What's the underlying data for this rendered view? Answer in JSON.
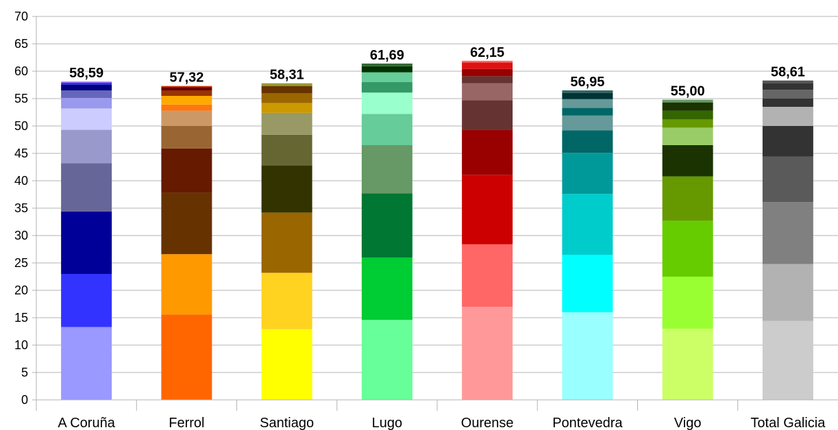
{
  "chart_data": {
    "type": "bar",
    "stacked": true,
    "title": "",
    "xlabel": "",
    "ylabel": "",
    "ylim": [
      0,
      70
    ],
    "yticks": [
      0,
      5,
      10,
      15,
      20,
      25,
      30,
      35,
      40,
      45,
      50,
      55,
      60,
      65,
      70
    ],
    "grid": true,
    "legend": "none",
    "categories": [
      "A Coruña",
      "Ferrol",
      "Santiago",
      "Lugo",
      "Ourense",
      "Pontevedra",
      "Vigo",
      "Total Galicia"
    ],
    "totals": [
      "58,59",
      "57,32",
      "58,31",
      "61,69",
      "62,15",
      "56,95",
      "55,00",
      "58,61"
    ],
    "stacks": [
      {
        "category": "A Coruña",
        "segments": [
          {
            "value": 13.3,
            "color": "#9999ff"
          },
          {
            "value": 9.7,
            "color": "#3333ff"
          },
          {
            "value": 11.4,
            "color": "#000099"
          },
          {
            "value": 8.8,
            "color": "#666699"
          },
          {
            "value": 6.1,
            "color": "#9999cc"
          },
          {
            "value": 3.9,
            "color": "#ccccff"
          },
          {
            "value": 1.9,
            "color": "#9999ee"
          },
          {
            "value": 1.4,
            "color": "#6666bb"
          },
          {
            "value": 1.0,
            "color": "#000080"
          },
          {
            "value": 0.4,
            "color": "#3333cc"
          },
          {
            "value": 0.2,
            "color": "#9966ff"
          }
        ]
      },
      {
        "category": "Ferrol",
        "segments": [
          {
            "value": 15.6,
            "color": "#ff6600"
          },
          {
            "value": 11.0,
            "color": "#ff9900"
          },
          {
            "value": 11.2,
            "color": "#663300"
          },
          {
            "value": 8.1,
            "color": "#661a00"
          },
          {
            "value": 4.1,
            "color": "#996633"
          },
          {
            "value": 2.8,
            "color": "#cc9966"
          },
          {
            "value": 1.1,
            "color": "#ff7711"
          },
          {
            "value": 1.6,
            "color": "#ffaa00"
          },
          {
            "value": 1.0,
            "color": "#993300"
          },
          {
            "value": 0.6,
            "color": "#660000"
          },
          {
            "value": 0.2,
            "color": "#cc3300"
          }
        ]
      },
      {
        "category": "Santiago",
        "segments": [
          {
            "value": 12.9,
            "color": "#ffff00"
          },
          {
            "value": 10.3,
            "color": "#ffd320"
          },
          {
            "value": 11.0,
            "color": "#996600"
          },
          {
            "value": 8.6,
            "color": "#333300"
          },
          {
            "value": 5.6,
            "color": "#666633"
          },
          {
            "value": 4.0,
            "color": "#999966"
          },
          {
            "value": 1.8,
            "color": "#cc9900"
          },
          {
            "value": 1.8,
            "color": "#996600"
          },
          {
            "value": 1.3,
            "color": "#663300"
          },
          {
            "value": 0.5,
            "color": "#999933"
          }
        ]
      },
      {
        "category": "Lugo",
        "segments": [
          {
            "value": 14.6,
            "color": "#66ff99"
          },
          {
            "value": 11.4,
            "color": "#00cc33"
          },
          {
            "value": 11.7,
            "color": "#007733"
          },
          {
            "value": 8.8,
            "color": "#669966"
          },
          {
            "value": 5.7,
            "color": "#66cc99"
          },
          {
            "value": 3.9,
            "color": "#99ffcc"
          },
          {
            "value": 1.9,
            "color": "#339966"
          },
          {
            "value": 1.8,
            "color": "#66cc99"
          },
          {
            "value": 1.1,
            "color": "#003300"
          },
          {
            "value": 0.5,
            "color": "#336633"
          }
        ]
      },
      {
        "category": "Ourense",
        "segments": [
          {
            "value": 17.0,
            "color": "#ff9999"
          },
          {
            "value": 11.4,
            "color": "#ff6666"
          },
          {
            "value": 12.7,
            "color": "#cc0000"
          },
          {
            "value": 8.2,
            "color": "#990000"
          },
          {
            "value": 5.4,
            "color": "#663333"
          },
          {
            "value": 3.1,
            "color": "#996666"
          },
          {
            "value": 1.3,
            "color": "#663333"
          },
          {
            "value": 1.3,
            "color": "#990000"
          },
          {
            "value": 1.2,
            "color": "#dd1111"
          },
          {
            "value": 0.3,
            "color": "#ff6666"
          }
        ]
      },
      {
        "category": "Pontevedra",
        "segments": [
          {
            "value": 16.0,
            "color": "#99ffff"
          },
          {
            "value": 10.5,
            "color": "#00ffff"
          },
          {
            "value": 11.1,
            "color": "#00cccc"
          },
          {
            "value": 7.5,
            "color": "#009999"
          },
          {
            "value": 4.1,
            "color": "#006666"
          },
          {
            "value": 2.7,
            "color": "#669999"
          },
          {
            "value": 1.4,
            "color": "#006666"
          },
          {
            "value": 1.6,
            "color": "#669999"
          },
          {
            "value": 1.1,
            "color": "#003333"
          },
          {
            "value": 0.5,
            "color": "#336666"
          }
        ]
      },
      {
        "category": "Vigo",
        "segments": [
          {
            "value": 13.0,
            "color": "#ccff66"
          },
          {
            "value": 9.5,
            "color": "#99ff33"
          },
          {
            "value": 10.2,
            "color": "#66cc00"
          },
          {
            "value": 8.1,
            "color": "#669900"
          },
          {
            "value": 5.7,
            "color": "#1a3300"
          },
          {
            "value": 3.2,
            "color": "#99cc66"
          },
          {
            "value": 1.5,
            "color": "#669900"
          },
          {
            "value": 1.6,
            "color": "#336600"
          },
          {
            "value": 1.5,
            "color": "#1a3300"
          },
          {
            "value": 0.5,
            "color": "#669966"
          }
        ]
      },
      {
        "category": "Total Galicia",
        "segments": [
          {
            "value": 14.4,
            "color": "#cccccc"
          },
          {
            "value": 10.4,
            "color": "#b2b2b2"
          },
          {
            "value": 11.3,
            "color": "#808080"
          },
          {
            "value": 8.3,
            "color": "#5a5a5a"
          },
          {
            "value": 5.6,
            "color": "#333333"
          },
          {
            "value": 3.5,
            "color": "#b2b2b2"
          },
          {
            "value": 1.5,
            "color": "#333333"
          },
          {
            "value": 1.6,
            "color": "#666666"
          },
          {
            "value": 1.2,
            "color": "#333333"
          },
          {
            "value": 0.5,
            "color": "#555555"
          }
        ]
      }
    ]
  }
}
